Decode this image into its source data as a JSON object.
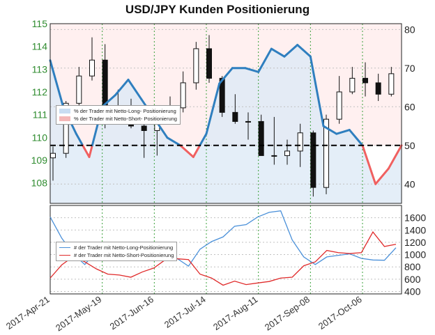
{
  "chart_data": [
    {
      "type": "candlestick+line",
      "title": "USD/JPY Kunden Positionierung",
      "x_ticks": [
        "2017-Apr-21",
        "2017-May-19",
        "2017-Jun-16",
        "2017-Jul-14",
        "2017-Aug-11",
        "2017-Sep-08",
        "2017-Oct-06"
      ],
      "x_range": [
        "2017-Apr-21",
        "2017-Oct-27"
      ],
      "left_axis": {
        "ticks": [
          108,
          109,
          110,
          111,
          112,
          113,
          114,
          115
        ],
        "ylim": [
          107.1,
          115
        ],
        "color": "#2e8b2e"
      },
      "right_axis": {
        "ticks": [
          40,
          50,
          60,
          70,
          80
        ],
        "ylim": [
          35,
          81.5
        ]
      },
      "threshold": 50,
      "grid": true,
      "legend": {
        "placement": "middle-left",
        "entries": [
          {
            "label": "% der Trader mit Netto-Long- Positionierung",
            "color": "#c9ddf2"
          },
          {
            "label": "% der Trader mit Netto-Short- Positionierung",
            "color": "#f4b8b8"
          }
        ]
      },
      "ohlc_weekly_approx": [
        {
          "date": "2017-Apr-21",
          "open": 109.1,
          "high": 109.6,
          "low": 108.1,
          "close": 109.3
        },
        {
          "date": "2017-Apr-28",
          "open": 109.3,
          "high": 111.6,
          "low": 109.1,
          "close": 111.5
        },
        {
          "date": "2017-May-05",
          "open": 111.5,
          "high": 113.1,
          "low": 111.2,
          "close": 112.7
        },
        {
          "date": "2017-May-12",
          "open": 112.7,
          "high": 114.4,
          "low": 112.5,
          "close": 113.4
        },
        {
          "date": "2017-May-19",
          "open": 113.4,
          "high": 114.1,
          "low": 110.4,
          "close": 111.3
        },
        {
          "date": "2017-May-26",
          "open": 111.3,
          "high": 112.1,
          "low": 110.6,
          "close": 111.3
        },
        {
          "date": "2017-Jun-02",
          "open": 111.3,
          "high": 111.7,
          "low": 110.4,
          "close": 110.5
        },
        {
          "date": "2017-Jun-09",
          "open": 110.5,
          "high": 110.9,
          "low": 109.1,
          "close": 110.3
        },
        {
          "date": "2017-Jun-16",
          "open": 110.3,
          "high": 111.3,
          "low": 109.2,
          "close": 110.9
        },
        {
          "date": "2017-Jun-23",
          "open": 110.9,
          "high": 111.8,
          "low": 110.6,
          "close": 111.3
        },
        {
          "date": "2017-Jun-30",
          "open": 111.3,
          "high": 112.9,
          "low": 111.1,
          "close": 112.4
        },
        {
          "date": "2017-Jul-07",
          "open": 112.4,
          "high": 114.2,
          "low": 112.1,
          "close": 113.9
        },
        {
          "date": "2017-Jul-14",
          "open": 113.9,
          "high": 114.5,
          "low": 112.4,
          "close": 112.6
        },
        {
          "date": "2017-Jul-21",
          "open": 112.6,
          "high": 112.7,
          "low": 110.9,
          "close": 111.1
        },
        {
          "date": "2017-Jul-28",
          "open": 111.1,
          "high": 111.9,
          "low": 110.6,
          "close": 110.7
        },
        {
          "date": "2017-Aug-04",
          "open": 110.7,
          "high": 111.1,
          "low": 109.9,
          "close": 110.7
        },
        {
          "date": "2017-Aug-11",
          "open": 110.7,
          "high": 111.0,
          "low": 109.3,
          "close": 109.2
        },
        {
          "date": "2017-Aug-18",
          "open": 109.2,
          "high": 110.9,
          "low": 108.8,
          "close": 109.2
        },
        {
          "date": "2017-Aug-25",
          "open": 109.2,
          "high": 109.9,
          "low": 108.8,
          "close": 109.4
        },
        {
          "date": "2017-Sep-01",
          "open": 109.4,
          "high": 110.6,
          "low": 108.7,
          "close": 110.2
        },
        {
          "date": "2017-Sep-08",
          "open": 110.2,
          "high": 110.3,
          "low": 107.4,
          "close": 107.8
        },
        {
          "date": "2017-Sep-15",
          "open": 107.8,
          "high": 111.0,
          "low": 107.5,
          "close": 110.8
        },
        {
          "date": "2017-Sep-22",
          "open": 110.8,
          "high": 112.7,
          "low": 110.6,
          "close": 112.0
        },
        {
          "date": "2017-Sep-29",
          "open": 112.0,
          "high": 113.1,
          "low": 111.9,
          "close": 112.6
        },
        {
          "date": "2017-Oct-06",
          "open": 112.6,
          "high": 113.3,
          "low": 111.8,
          "close": 112.4
        },
        {
          "date": "2017-Oct-13",
          "open": 112.4,
          "high": 112.8,
          "low": 111.6,
          "close": 111.9
        },
        {
          "date": "2017-Oct-20",
          "open": 111.9,
          "high": 113.1,
          "low": 111.8,
          "close": 112.8
        }
      ],
      "net_long_percent_approx": [
        {
          "date": "2017-Apr-21",
          "value": 72
        },
        {
          "date": "2017-Apr-28",
          "value": 60
        },
        {
          "date": "2017-May-05",
          "value": 53
        },
        {
          "date": "2017-May-12",
          "value": 47
        },
        {
          "date": "2017-May-19",
          "value": 60
        },
        {
          "date": "2017-May-26",
          "value": 63
        },
        {
          "date": "2017-Jun-02",
          "value": 67
        },
        {
          "date": "2017-Jun-09",
          "value": 62
        },
        {
          "date": "2017-Jun-16",
          "value": 57
        },
        {
          "date": "2017-Jun-23",
          "value": 52
        },
        {
          "date": "2017-Jun-30",
          "value": 50
        },
        {
          "date": "2017-Jul-07",
          "value": 47
        },
        {
          "date": "2017-Jul-14",
          "value": 53
        },
        {
          "date": "2017-Jul-21",
          "value": 66
        },
        {
          "date": "2017-Jul-28",
          "value": 70
        },
        {
          "date": "2017-Aug-04",
          "value": 70
        },
        {
          "date": "2017-Aug-11",
          "value": 69
        },
        {
          "date": "2017-Aug-18",
          "value": 75
        },
        {
          "date": "2017-Aug-25",
          "value": 73
        },
        {
          "date": "2017-Sep-01",
          "value": 76
        },
        {
          "date": "2017-Sep-08",
          "value": 73
        },
        {
          "date": "2017-Sep-15",
          "value": 55
        },
        {
          "date": "2017-Sep-22",
          "value": 53
        },
        {
          "date": "2017-Sep-29",
          "value": 54
        },
        {
          "date": "2017-Oct-06",
          "value": 50
        },
        {
          "date": "2017-Oct-13",
          "value": 40
        },
        {
          "date": "2017-Oct-20",
          "value": 44
        },
        {
          "date": "2017-Oct-27",
          "value": 50
        }
      ]
    },
    {
      "type": "line",
      "x_ticks": [
        "2017-Apr-21",
        "2017-May-19",
        "2017-Jun-16",
        "2017-Jul-14",
        "2017-Aug-11",
        "2017-Sep-08",
        "2017-Oct-06"
      ],
      "right_axis": {
        "ticks": [
          400,
          600,
          800,
          1000,
          1200,
          1400,
          1600
        ],
        "ylim": [
          360,
          1800
        ]
      },
      "grid": true,
      "legend": {
        "placement": "middle-left",
        "entries": [
          {
            "label": "# der Trader mit Netto-Long-Positionierung",
            "color": "#4a90d9"
          },
          {
            "label": "# der Trader mit Netto-Short-Positionierung",
            "color": "#e02a2a"
          }
        ]
      },
      "series": [
        {
          "name": "# der Trader mit Netto-Long-Positionierung",
          "color": "#4a90d9",
          "values_approx": [
            1600,
            1280,
            1000,
            850,
            1050,
            1200,
            1050,
            1100,
            1150,
            1000,
            900,
            950,
            800,
            1100,
            1200,
            1300,
            1450,
            1500,
            1600,
            1700,
            1700,
            1250,
            950,
            850,
            950,
            1000,
            1000,
            950,
            900,
            920,
            1100
          ]
        },
        {
          "name": "# der Trader mit Netto-Short-Positionierung",
          "color": "#e02a2a",
          "values_approx": [
            600,
            850,
            950,
            900,
            750,
            700,
            650,
            650,
            700,
            800,
            900,
            950,
            900,
            700,
            600,
            520,
            550,
            530,
            520,
            580,
            600,
            650,
            800,
            900,
            1050,
            1050,
            1000,
            1050,
            1350,
            1150,
            1150
          ]
        }
      ]
    }
  ]
}
